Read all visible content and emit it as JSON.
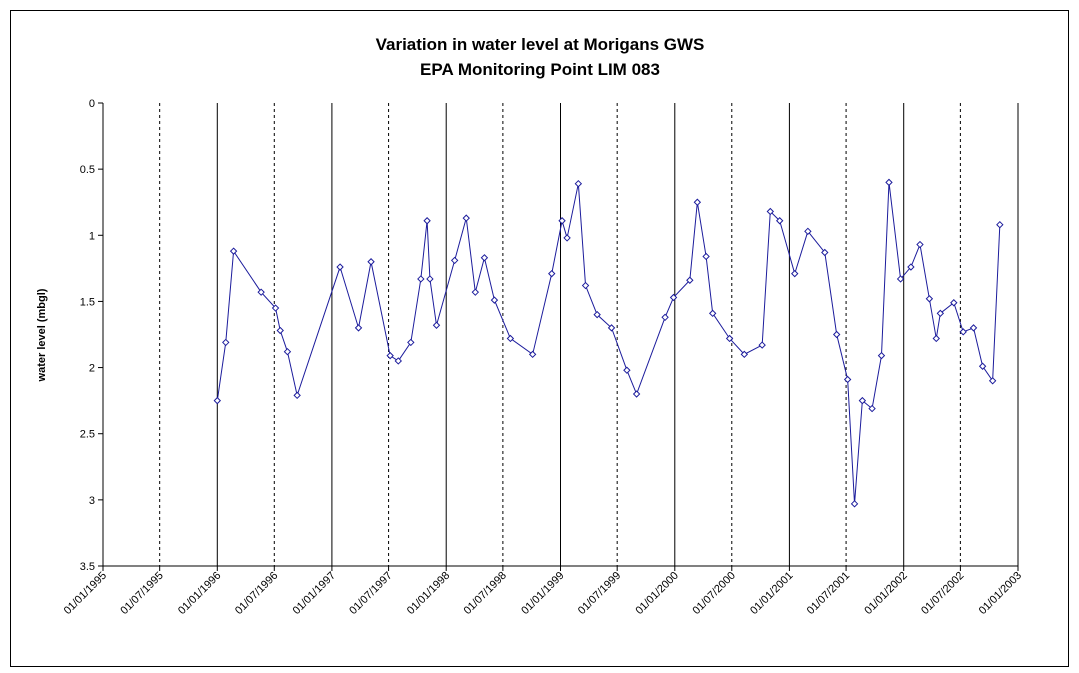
{
  "chart_data": {
    "type": "line",
    "title": "Variation in water level at Morigans GWS",
    "subtitle": "EPA Monitoring Point LIM 083",
    "y_label": "water level (mbgl)",
    "ylim": [
      0,
      3.5
    ],
    "yticks": [
      0,
      0.5,
      1,
      1.5,
      2,
      2.5,
      3,
      3.5
    ],
    "y_inverted": true,
    "xlim": [
      "01/01/1995",
      "01/01/2003"
    ],
    "xticks": [
      "01/01/1995",
      "01/07/1995",
      "01/01/1996",
      "01/07/1996",
      "01/01/1997",
      "01/07/1997",
      "01/01/1998",
      "01/07/1998",
      "01/01/1999",
      "01/07/1999",
      "01/01/2000",
      "01/07/2000",
      "01/01/2001",
      "01/07/2001",
      "01/01/2002",
      "01/07/2002",
      "01/01/2003"
    ],
    "grid": true,
    "series": [
      {
        "color": "#1c1c9c",
        "x": [
          "01/01/1996",
          "28/01/1996",
          "22/02/1996",
          "20/05/1996",
          "05/07/1996",
          "20/07/1996",
          "12/08/1996",
          "12/09/1996",
          "27/01/1997",
          "27/03/1997",
          "06/05/1997",
          "06/07/1997",
          "01/08/1997",
          "10/09/1997",
          "12/10/1997",
          "01/11/1997",
          "10/11/1997",
          "01/12/1997",
          "28/01/1998",
          "06/03/1998",
          "04/04/1998",
          "03/05/1998",
          "04/06/1998",
          "25/07/1998",
          "04/10/1998",
          "04/12/1998",
          "06/01/1999",
          "22/01/1999",
          "27/02/1999",
          "22/03/1999",
          "28/04/1999",
          "13/06/1999",
          "01/08/1999",
          "01/09/1999",
          "01/12/1999",
          "28/12/1999",
          "18/02/2000",
          "13/03/2000",
          "10/04/2000",
          "01/05/2000",
          "24/06/2000",
          "10/08/2000",
          "06/10/2000",
          "01/11/2000",
          "01/12/2000",
          "18/01/2001",
          "01/03/2001",
          "24/04/2001",
          "01/06/2001",
          "06/07/2001",
          "28/07/2001",
          "22/08/2001",
          "22/09/2001",
          "22/10/2001",
          "15/11/2001",
          "22/12/2001",
          "24/01/2002",
          "22/02/2002",
          "24/03/2002",
          "15/04/2002",
          "28/04/2002",
          "10/06/2002",
          "10/07/2002",
          "12/08/2002",
          "10/09/2002",
          "12/10/2002",
          "04/11/2002"
        ],
        "values": [
          2.25,
          1.81,
          1.12,
          1.43,
          1.55,
          1.72,
          1.88,
          2.21,
          1.24,
          1.7,
          1.2,
          1.91,
          1.95,
          1.81,
          1.33,
          0.89,
          1.33,
          1.68,
          1.19,
          0.87,
          1.43,
          1.17,
          1.49,
          1.78,
          1.9,
          1.29,
          0.89,
          1.02,
          0.61,
          1.38,
          1.6,
          1.7,
          2.02,
          2.2,
          1.62,
          1.47,
          1.34,
          0.75,
          1.16,
          1.59,
          1.78,
          1.9,
          1.83,
          0.82,
          0.89,
          1.29,
          0.97,
          1.13,
          1.75,
          2.09,
          3.03,
          2.25,
          2.31,
          1.91,
          0.6,
          1.33,
          1.24,
          1.07,
          1.48,
          1.78,
          1.59,
          1.51,
          1.73,
          1.7,
          1.99,
          2.1,
          0.92
        ]
      }
    ]
  }
}
